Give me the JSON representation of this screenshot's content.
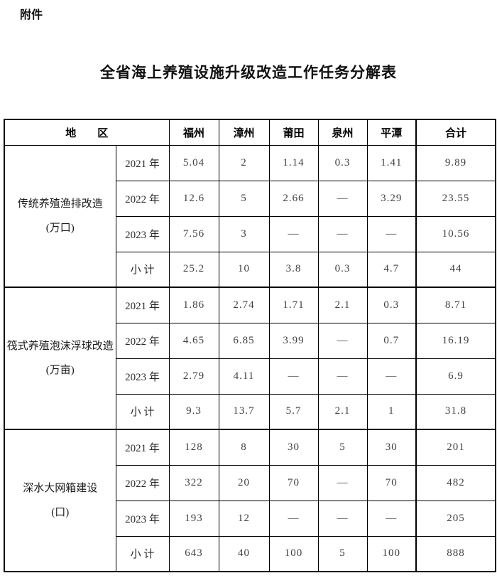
{
  "page": {
    "attachment_label": "附件",
    "title": "全省海上养殖设施升级改造工作任务分解表"
  },
  "colors": {
    "background": "#ffffff",
    "border": "#000000",
    "text": "#1a1a1a",
    "number_text": "#404040"
  },
  "table": {
    "header": {
      "region_label": "地　　区",
      "cities": [
        "福州",
        "漳州",
        "莆田",
        "泉州",
        "平潭",
        "合计"
      ]
    },
    "empty_placeholder": "—",
    "groups": [
      {
        "name_line1": "传统养殖渔排改造",
        "name_line2": "(万口)",
        "rows": [
          {
            "label": "2021 年",
            "values": [
              "5.04",
              "2",
              "1.14",
              "0.3",
              "1.41",
              "9.89"
            ]
          },
          {
            "label": "2022 年",
            "values": [
              "12.6",
              "5",
              "2.66",
              "—",
              "3.29",
              "23.55"
            ]
          },
          {
            "label": "2023 年",
            "values": [
              "7.56",
              "3",
              "—",
              "—",
              "—",
              "10.56"
            ]
          },
          {
            "label": "小 计",
            "values": [
              "25.2",
              "10",
              "3.8",
              "0.3",
              "4.7",
              "44"
            ]
          }
        ]
      },
      {
        "name_line1": "筏式养殖泡沫浮球改造",
        "name_line2": "(万亩)",
        "rows": [
          {
            "label": "2021 年",
            "values": [
              "1.86",
              "2.74",
              "1.71",
              "2.1",
              "0.3",
              "8.71"
            ]
          },
          {
            "label": "2022 年",
            "values": [
              "4.65",
              "6.85",
              "3.99",
              "—",
              "0.7",
              "16.19"
            ]
          },
          {
            "label": "2023 年",
            "values": [
              "2.79",
              "4.11",
              "—",
              "—",
              "—",
              "6.9"
            ]
          },
          {
            "label": "小 计",
            "values": [
              "9.3",
              "13.7",
              "5.7",
              "2.1",
              "1",
              "31.8"
            ]
          }
        ]
      },
      {
        "name_line1": "深水大网箱建设",
        "name_line2": "(口)",
        "rows": [
          {
            "label": "2021 年",
            "values": [
              "128",
              "8",
              "30",
              "5",
              "30",
              "201"
            ]
          },
          {
            "label": "2022 年",
            "values": [
              "322",
              "20",
              "70",
              "—",
              "70",
              "482"
            ]
          },
          {
            "label": "2023 年",
            "values": [
              "193",
              "12",
              "—",
              "—",
              "—",
              "205"
            ]
          },
          {
            "label": "小 计",
            "values": [
              "643",
              "40",
              "100",
              "5",
              "100",
              "888"
            ]
          }
        ]
      }
    ]
  }
}
